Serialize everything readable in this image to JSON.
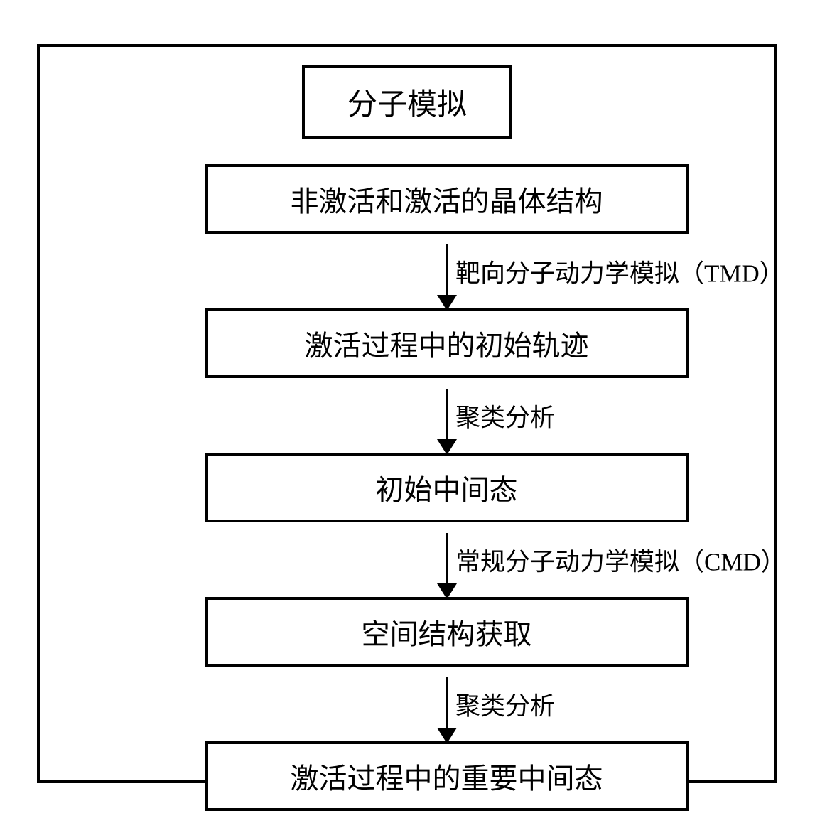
{
  "diagram": {
    "type": "flowchart",
    "title": "分子模拟",
    "background_color": "#ffffff",
    "border_color": "#000000",
    "border_width": 4,
    "title_fontsize": 42,
    "box_fontsize": 40,
    "label_fontsize": 35,
    "nodes": [
      {
        "id": "box1",
        "label": "非激活和激活的晶体结构"
      },
      {
        "id": "box2",
        "label": "激活过程中的初始轨迹"
      },
      {
        "id": "box3",
        "label": "初始中间态"
      },
      {
        "id": "box4",
        "label": "空间结构获取"
      },
      {
        "id": "box5",
        "label": "激活过程中的重要中间态"
      }
    ],
    "edges": [
      {
        "from": "box1",
        "to": "box2",
        "label": "靶向分子动力学模拟（TMD）"
      },
      {
        "from": "box2",
        "to": "box3",
        "label": "聚类分析"
      },
      {
        "from": "box3",
        "to": "box4",
        "label": "常规分子动力学模拟（CMD）"
      },
      {
        "from": "box4",
        "to": "box5",
        "label": "聚类分析"
      }
    ]
  }
}
